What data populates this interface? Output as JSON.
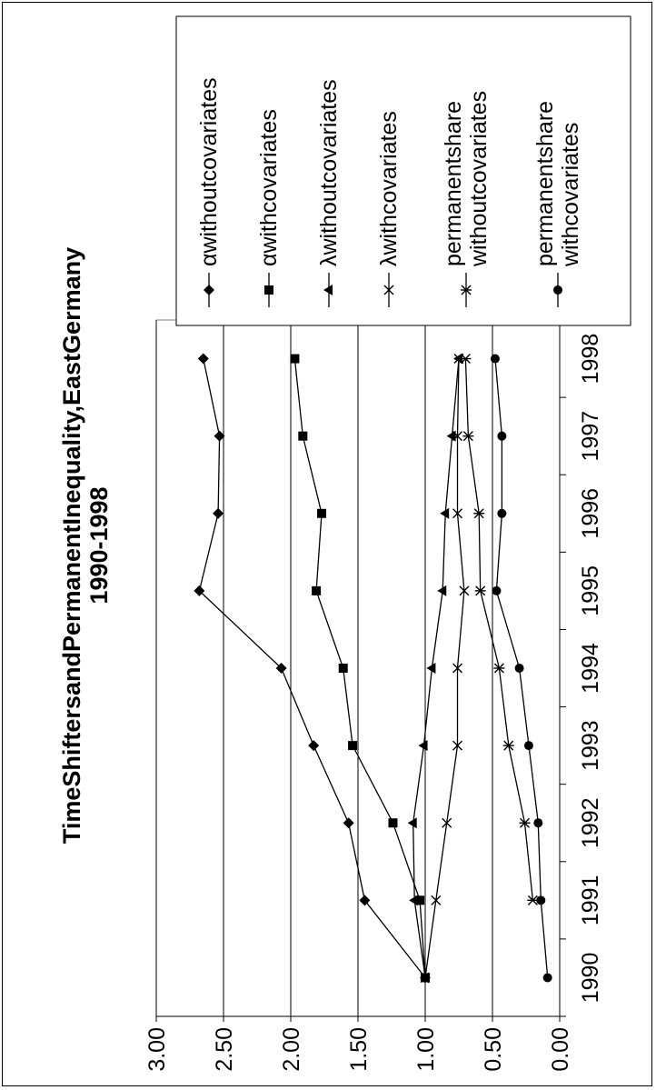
{
  "chart_data": {
    "type": "line",
    "title": "TimeShiftersandPermanentInequality,EastGermany",
    "subtitle": "1990-1998",
    "x": [
      "1990",
      "1991",
      "1992",
      "1993",
      "1994",
      "1995",
      "1996",
      "1997",
      "1998"
    ],
    "ylim": [
      0,
      3
    ],
    "y_ticks": [
      "0.00",
      "0.50",
      "1.00",
      "1.50",
      "2.00",
      "2.50",
      "3.00"
    ],
    "y_tick_values": [
      0,
      0.5,
      1,
      1.5,
      2,
      2.5,
      3
    ],
    "grid": true,
    "legend_position": "right",
    "orientation": "rotated 90 degrees counter-clockwise",
    "series": [
      {
        "name": "αwithoutcovariates",
        "marker": "diamond",
        "values": [
          1.0,
          1.45,
          1.57,
          1.83,
          2.07,
          2.68,
          2.54,
          2.53,
          2.65
        ]
      },
      {
        "name": "αwithcovariates",
        "marker": "square",
        "values": [
          1.0,
          1.04,
          1.24,
          1.54,
          1.61,
          1.81,
          1.77,
          1.91,
          1.97
        ]
      },
      {
        "name": "λwithoutcovariates",
        "marker": "triangle",
        "values": [
          1.0,
          1.08,
          1.09,
          1.01,
          0.95,
          0.87,
          0.85,
          0.8,
          0.75
        ]
      },
      {
        "name": "λwithcovariates",
        "marker": "x",
        "values": [
          1.0,
          0.92,
          0.84,
          0.76,
          0.76,
          0.71,
          0.76,
          0.76,
          0.75
        ]
      },
      {
        "name": "permanentshare withoutcovariates",
        "marker": "star",
        "values": [
          null,
          0.2,
          0.26,
          0.38,
          0.45,
          0.59,
          0.6,
          0.68,
          0.7
        ]
      },
      {
        "name": "permanentshare withcovariates",
        "marker": "circle",
        "values": [
          0.09,
          0.14,
          0.16,
          0.23,
          0.3,
          0.47,
          0.43,
          0.43,
          0.48
        ]
      }
    ]
  }
}
